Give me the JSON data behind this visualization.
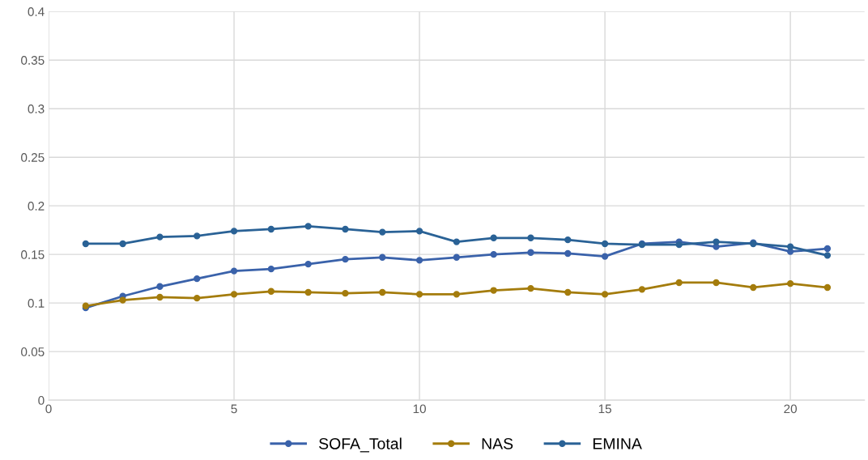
{
  "chart_data": {
    "type": "line",
    "x": [
      1,
      2,
      3,
      4,
      5,
      6,
      7,
      8,
      9,
      10,
      11,
      12,
      13,
      14,
      15,
      16,
      17,
      18,
      19,
      20,
      21
    ],
    "series": [
      {
        "name": "SOFA_Total",
        "color": "#3a62aa",
        "values": [
          0.095,
          0.107,
          0.117,
          0.125,
          0.133,
          0.135,
          0.14,
          0.145,
          0.147,
          0.144,
          0.147,
          0.15,
          0.152,
          0.151,
          0.148,
          0.161,
          0.163,
          0.158,
          0.162,
          0.153,
          0.156
        ]
      },
      {
        "name": "NAS",
        "color": "#a47c0c",
        "values": [
          0.097,
          0.103,
          0.106,
          0.105,
          0.109,
          0.112,
          0.111,
          0.11,
          0.111,
          0.109,
          0.109,
          0.113,
          0.115,
          0.111,
          0.109,
          0.114,
          0.121,
          0.121,
          0.116,
          0.12,
          0.116
        ]
      },
      {
        "name": "EMINA",
        "color": "#2a6296",
        "values": [
          0.161,
          0.161,
          0.168,
          0.169,
          0.174,
          0.176,
          0.179,
          0.176,
          0.173,
          0.174,
          0.163,
          0.167,
          0.167,
          0.165,
          0.161,
          0.16,
          0.16,
          0.163,
          0.161,
          0.158,
          0.149
        ]
      }
    ],
    "xlim": [
      0,
      22
    ],
    "xticks": [
      0,
      5,
      10,
      15,
      20
    ],
    "ylim": [
      0,
      0.4
    ],
    "yticks": [
      0,
      0.05,
      0.1,
      0.15,
      0.2,
      0.25,
      0.3,
      0.35,
      0.4
    ],
    "grid": true,
    "legend": "bottom",
    "marker": "circle",
    "line_style": "solid"
  }
}
